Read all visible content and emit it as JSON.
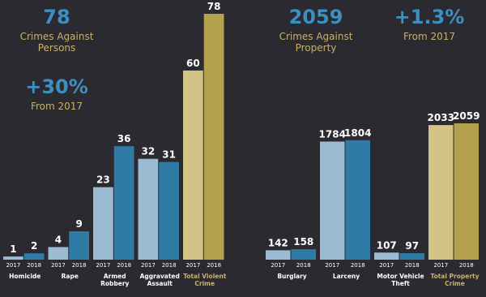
{
  "chart_data": [
    {
      "type": "bar",
      "stats": [
        {
          "value": "78",
          "label": "Crimes Against Persons"
        },
        {
          "value": "+30%",
          "label": "From 2017"
        }
      ],
      "categories": [
        "Homicide",
        "Rape",
        "Armed Robbery",
        "Aggravated Assault",
        "Total Violent Crime"
      ],
      "series": [
        {
          "name": "2017",
          "color": "#9bbbd3",
          "highlight_color": "#d3c386",
          "values": [
            1,
            4,
            23,
            32,
            60
          ]
        },
        {
          "name": "2018",
          "color": "#2f7ba5",
          "highlight_color": "#b3a14d",
          "values": [
            2,
            9,
            36,
            31,
            78
          ]
        }
      ],
      "highlight_last": true
    },
    {
      "type": "bar",
      "stats": [
        {
          "value": "2059",
          "label": "Crimes Against Property"
        },
        {
          "value": "+1.3%",
          "label": "From 2017"
        }
      ],
      "categories": [
        "Burglary",
        "Larceny",
        "Motor Vehicle Theft",
        "Total Property Crime"
      ],
      "series": [
        {
          "name": "2017",
          "color": "#9bbbd3",
          "highlight_color": "#d3c386",
          "values": [
            142,
            1784,
            107,
            2033
          ]
        },
        {
          "name": "2018",
          "color": "#2f7ba5",
          "highlight_color": "#b3a14d",
          "values": [
            158,
            1804,
            97,
            2059
          ]
        }
      ],
      "highlight_last": true
    }
  ]
}
